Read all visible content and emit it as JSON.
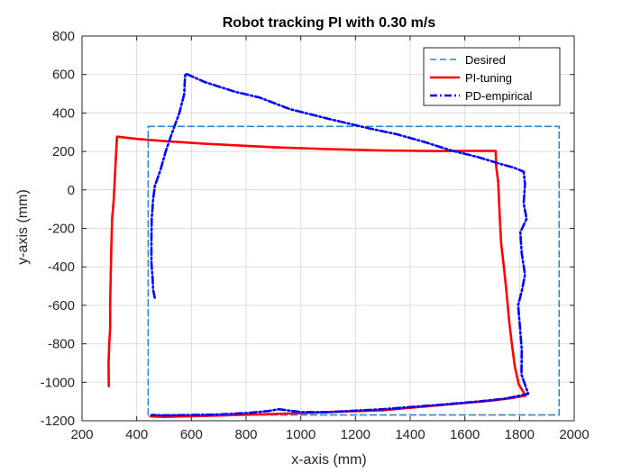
{
  "chart_data": {
    "type": "line",
    "title": "Robot tracking PI with 0.30 m/s",
    "xlabel": "x-axis (mm)",
    "ylabel": "y-axis (mm)",
    "xlim": [
      200,
      2000
    ],
    "ylim": [
      -1200,
      800
    ],
    "xticks": [
      200,
      400,
      600,
      800,
      1000,
      1200,
      1400,
      1600,
      1800,
      2000
    ],
    "yticks": [
      -1200,
      -1000,
      -800,
      -600,
      -400,
      -200,
      0,
      200,
      400,
      600,
      800
    ],
    "grid": true,
    "legend_position": "top-right",
    "series": [
      {
        "name": "Desired",
        "color": "#3186c7",
        "style": "dashed",
        "points": [
          [
            442,
            330
          ],
          [
            1945,
            330
          ],
          [
            1945,
            -1170
          ],
          [
            442,
            -1170
          ],
          [
            442,
            330
          ]
        ]
      },
      {
        "name": "PI-tuning",
        "color": "#ff0000",
        "style": "solid",
        "points": [
          [
            298,
            -1020
          ],
          [
            297,
            -900
          ],
          [
            300,
            -790
          ],
          [
            303,
            -720
          ],
          [
            303,
            -600
          ],
          [
            305,
            -450
          ],
          [
            307,
            -300
          ],
          [
            310,
            -150
          ],
          [
            316,
            -50
          ],
          [
            322,
            120
          ],
          [
            328,
            277
          ],
          [
            400,
            265
          ],
          [
            500,
            254
          ],
          [
            650,
            240
          ],
          [
            900,
            222
          ],
          [
            1100,
            212
          ],
          [
            1300,
            205
          ],
          [
            1500,
            202
          ],
          [
            1600,
            203
          ],
          [
            1713,
            203
          ],
          [
            1715,
            120
          ],
          [
            1722,
            40
          ],
          [
            1728,
            -150
          ],
          [
            1733,
            -280
          ],
          [
            1743,
            -400
          ],
          [
            1753,
            -540
          ],
          [
            1762,
            -680
          ],
          [
            1772,
            -800
          ],
          [
            1783,
            -920
          ],
          [
            1797,
            -1010
          ],
          [
            1822,
            -1070
          ],
          [
            1780,
            -1080
          ],
          [
            1700,
            -1095
          ],
          [
            1500,
            -1120
          ],
          [
            1300,
            -1145
          ],
          [
            1100,
            -1155
          ],
          [
            900,
            -1165
          ],
          [
            700,
            -1173
          ],
          [
            500,
            -1180
          ],
          [
            450,
            -1177
          ]
        ]
      },
      {
        "name": "PD-empirical",
        "color": "#0000ff",
        "style": "dashdot",
        "points": [
          [
            466,
            -560
          ],
          [
            460,
            -520
          ],
          [
            458,
            -460
          ],
          [
            454,
            -380
          ],
          [
            454,
            -250
          ],
          [
            455,
            -150
          ],
          [
            460,
            -50
          ],
          [
            466,
            20
          ],
          [
            486,
            100
          ],
          [
            506,
            200
          ],
          [
            530,
            300
          ],
          [
            556,
            400
          ],
          [
            574,
            500
          ],
          [
            576,
            575
          ],
          [
            578,
            605
          ],
          [
            650,
            560
          ],
          [
            760,
            510
          ],
          [
            850,
            480
          ],
          [
            960,
            420
          ],
          [
            1100,
            370
          ],
          [
            1250,
            320
          ],
          [
            1350,
            290
          ],
          [
            1450,
            250
          ],
          [
            1550,
            205
          ],
          [
            1650,
            170
          ],
          [
            1718,
            140
          ],
          [
            1780,
            115
          ],
          [
            1815,
            95
          ],
          [
            1820,
            30
          ],
          [
            1815,
            -70
          ],
          [
            1826,
            -150
          ],
          [
            1803,
            -220
          ],
          [
            1808,
            -330
          ],
          [
            1820,
            -440
          ],
          [
            1809,
            -520
          ],
          [
            1795,
            -600
          ],
          [
            1801,
            -700
          ],
          [
            1808,
            -830
          ],
          [
            1807,
            -960
          ],
          [
            1832,
            -1060
          ],
          [
            1750,
            -1085
          ],
          [
            1650,
            -1100
          ],
          [
            1500,
            -1118
          ],
          [
            1300,
            -1140
          ],
          [
            1100,
            -1155
          ],
          [
            1000,
            -1155
          ],
          [
            920,
            -1140
          ],
          [
            880,
            -1150
          ],
          [
            800,
            -1160
          ],
          [
            700,
            -1167
          ],
          [
            600,
            -1170
          ],
          [
            500,
            -1172
          ],
          [
            455,
            -1170
          ]
        ]
      }
    ]
  }
}
